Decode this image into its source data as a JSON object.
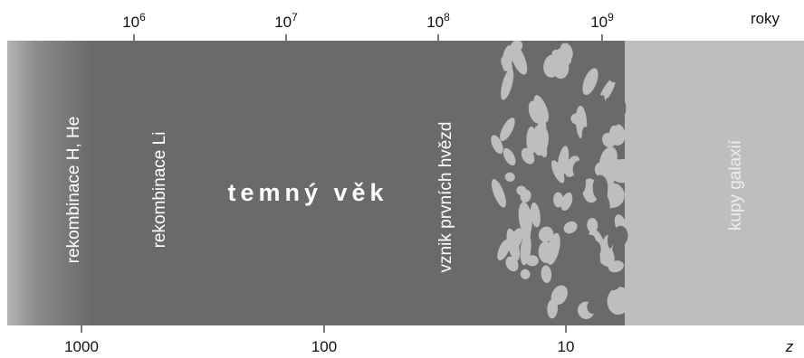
{
  "top_axis": {
    "ticks": [
      {
        "base": "10",
        "exp": "6"
      },
      {
        "base": "10",
        "exp": "7"
      },
      {
        "base": "10",
        "exp": "8"
      },
      {
        "base": "10",
        "exp": "9"
      }
    ],
    "unit": "roky"
  },
  "bottom_axis": {
    "ticks": [
      "1000",
      "100",
      "10"
    ],
    "unit": "z"
  },
  "eras": [
    "rekombinace H, He",
    "rekombinace Li",
    "temný věk",
    "vznik prvních hvězd",
    "kupy galaxií"
  ]
}
